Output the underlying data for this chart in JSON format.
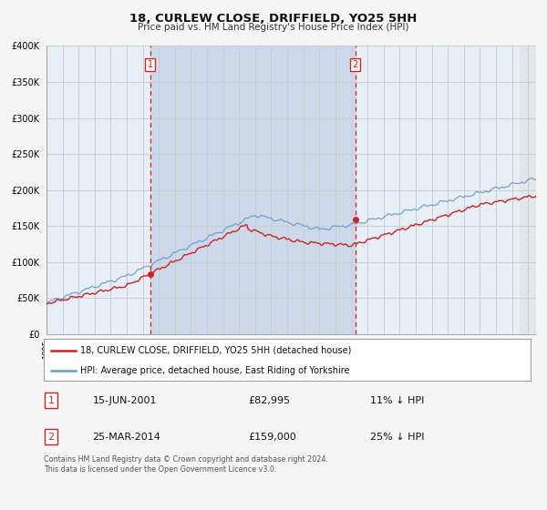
{
  "title": "18, CURLEW CLOSE, DRIFFIELD, YO25 5HH",
  "subtitle": "Price paid vs. HM Land Registry's House Price Index (HPI)",
  "footer": "Contains HM Land Registry data © Crown copyright and database right 2024.\nThis data is licensed under the Open Government Licence v3.0.",
  "legend_line1": "18, CURLEW CLOSE, DRIFFIELD, YO25 5HH (detached house)",
  "legend_line2": "HPI: Average price, detached house, East Riding of Yorkshire",
  "sale1_label": "1",
  "sale2_label": "2",
  "sale1_date": "15-JUN-2001",
  "sale1_price": "£82,995",
  "sale1_hpi": "11% ↓ HPI",
  "sale2_date": "25-MAR-2014",
  "sale2_price": "£159,000",
  "sale2_hpi": "25% ↓ HPI",
  "background_color": "#f5f5f5",
  "plot_bg_color": "#e8eef5",
  "highlight_bg_color": "#ccd9ea",
  "grid_color": "#cccccc",
  "red_line_color": "#cc2222",
  "blue_line_color": "#6699cc",
  "dashed_line_color": "#cc2222",
  "sale1_x": 2001.46,
  "sale2_x": 2014.23,
  "sale1_y": 82995,
  "sale2_y": 159000,
  "ylim_max": 400000,
  "xlim_start": 1995.0,
  "xlim_end": 2025.5,
  "yticks": [
    0,
    50000,
    100000,
    150000,
    200000,
    250000,
    300000,
    350000,
    400000
  ]
}
